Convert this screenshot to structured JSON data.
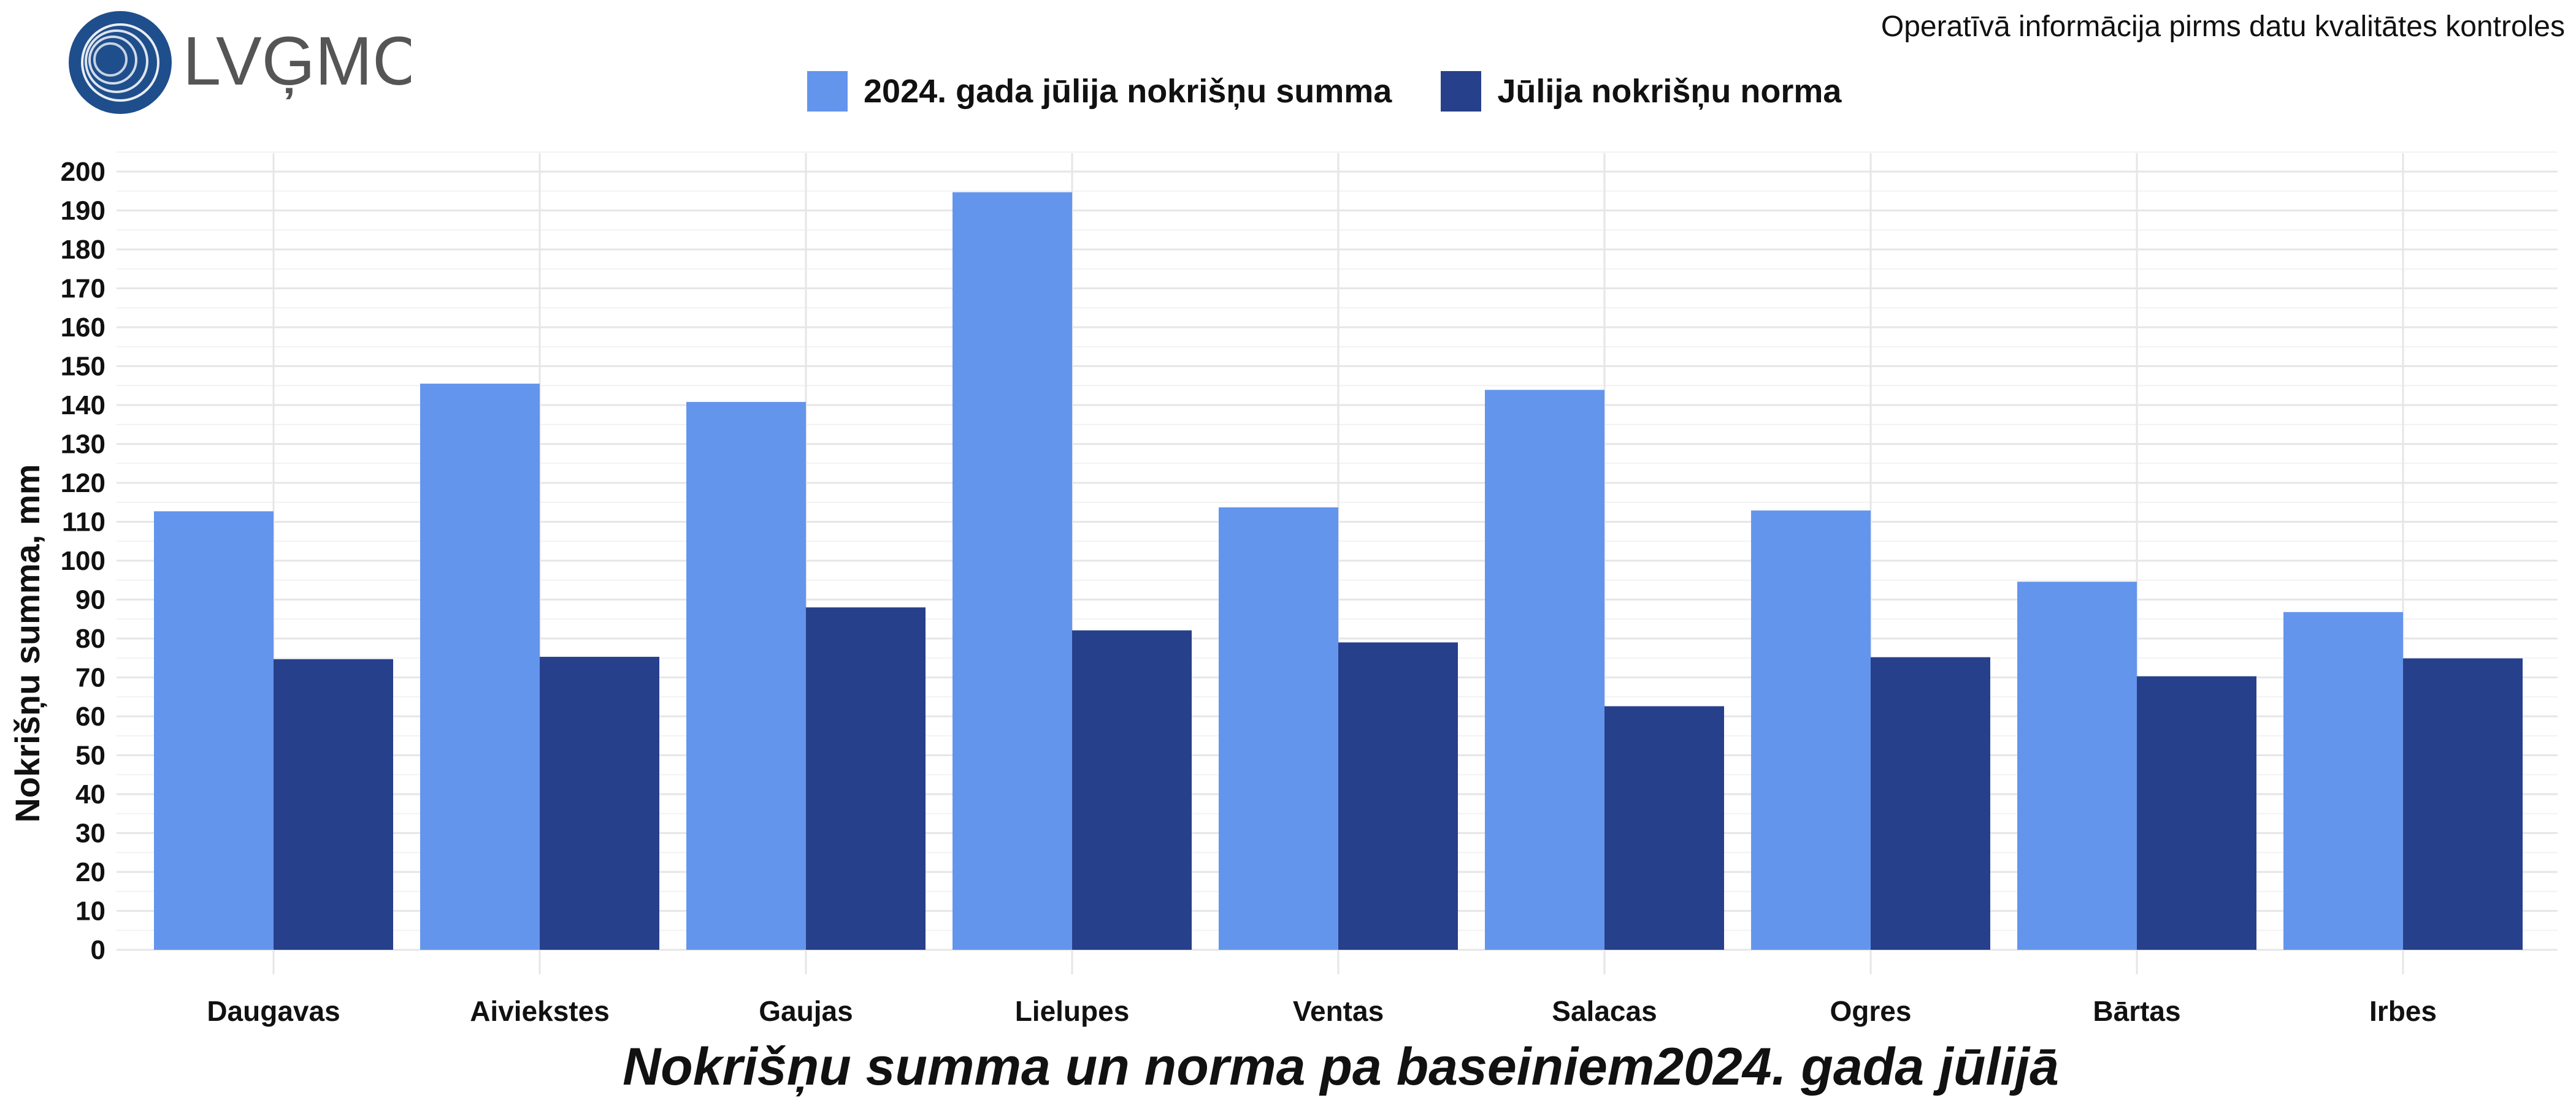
{
  "header": {
    "logo_text": "LVĢMC",
    "note": "Operatīvā informācija pirms datu kvalitātes kontroles"
  },
  "colors": {
    "logo_blue": "#1f4e8c",
    "logo_text": "#555555",
    "series_sum": "#6495ed",
    "series_norm": "#27408b",
    "grid": "#e6e6e6"
  },
  "chart_data": {
    "type": "bar",
    "title": "Nokrišņu summa un norma pa baseiniem2024. gada jūlijā",
    "ylabel": "Nokrišņu summa, mm",
    "xlabel": "",
    "ylim": [
      0,
      200
    ],
    "ytick_step": 10,
    "legend_position": "top",
    "grid": true,
    "categories": [
      "Daugavas",
      "Aiviekstes",
      "Gaujas",
      "Lielupes",
      "Ventas",
      "Salacas",
      "Ogres",
      "Bārtas",
      "Irbes"
    ],
    "series": [
      {
        "name": "2024. gada jūlija nokrišņu summa",
        "color": "#6495ed",
        "values": [
          112.7,
          145.5,
          140.8,
          194.7,
          113.7,
          143.9,
          112.9,
          94.6,
          86.8
        ]
      },
      {
        "name": "Jūlija nokrišņu norma",
        "color": "#27408b",
        "values": [
          74.7,
          75.3,
          88.0,
          82.1,
          79.0,
          62.6,
          75.2,
          70.3,
          74.9
        ]
      }
    ]
  }
}
